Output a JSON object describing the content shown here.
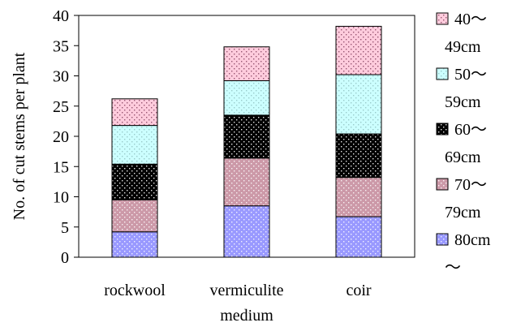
{
  "chart_data": {
    "type": "bar",
    "stacked": true,
    "categories": [
      "rockwool",
      "vermiculite",
      "coir"
    ],
    "series": [
      {
        "name": "80cm～",
        "values": [
          4.2,
          8.5,
          6.7
        ],
        "color": "#9999ff",
        "pattern": "dots-light"
      },
      {
        "name": "70～79cm",
        "values": [
          5.3,
          7.9,
          6.5
        ],
        "color": "#cc99a8",
        "pattern": "dots-light"
      },
      {
        "name": "60～69cm",
        "values": [
          5.9,
          7.1,
          7.2
        ],
        "color": "#000000",
        "pattern": "dots-white"
      },
      {
        "name": "50～59cm",
        "values": [
          6.4,
          5.7,
          9.8
        ],
        "color": "#ccffff",
        "pattern": "dots-faint"
      },
      {
        "name": "40～49cm",
        "values": [
          4.4,
          5.6,
          8.0
        ],
        "color": "#ffccdd",
        "pattern": "dots-dark"
      }
    ],
    "ylabel": "No. of cut stems per plant",
    "xlabel": "medium",
    "ylim": [
      0,
      40
    ],
    "yticks": [
      0,
      5,
      10,
      15,
      20,
      25,
      30,
      35,
      40
    ],
    "grid": false,
    "legend_position": "right"
  },
  "legend_lines": [
    {
      "text": "40～",
      "swatch": 4
    },
    {
      "text": "49cm",
      "swatch": null
    },
    {
      "text": "50～",
      "swatch": 3
    },
    {
      "text": "59cm",
      "swatch": null
    },
    {
      "text": "60～",
      "swatch": 2
    },
    {
      "text": "69cm",
      "swatch": null
    },
    {
      "text": "70～",
      "swatch": 1
    },
    {
      "text": "79cm",
      "swatch": null
    },
    {
      "text": "80cm",
      "swatch": 0
    },
    {
      "text": "～",
      "swatch": null
    }
  ]
}
